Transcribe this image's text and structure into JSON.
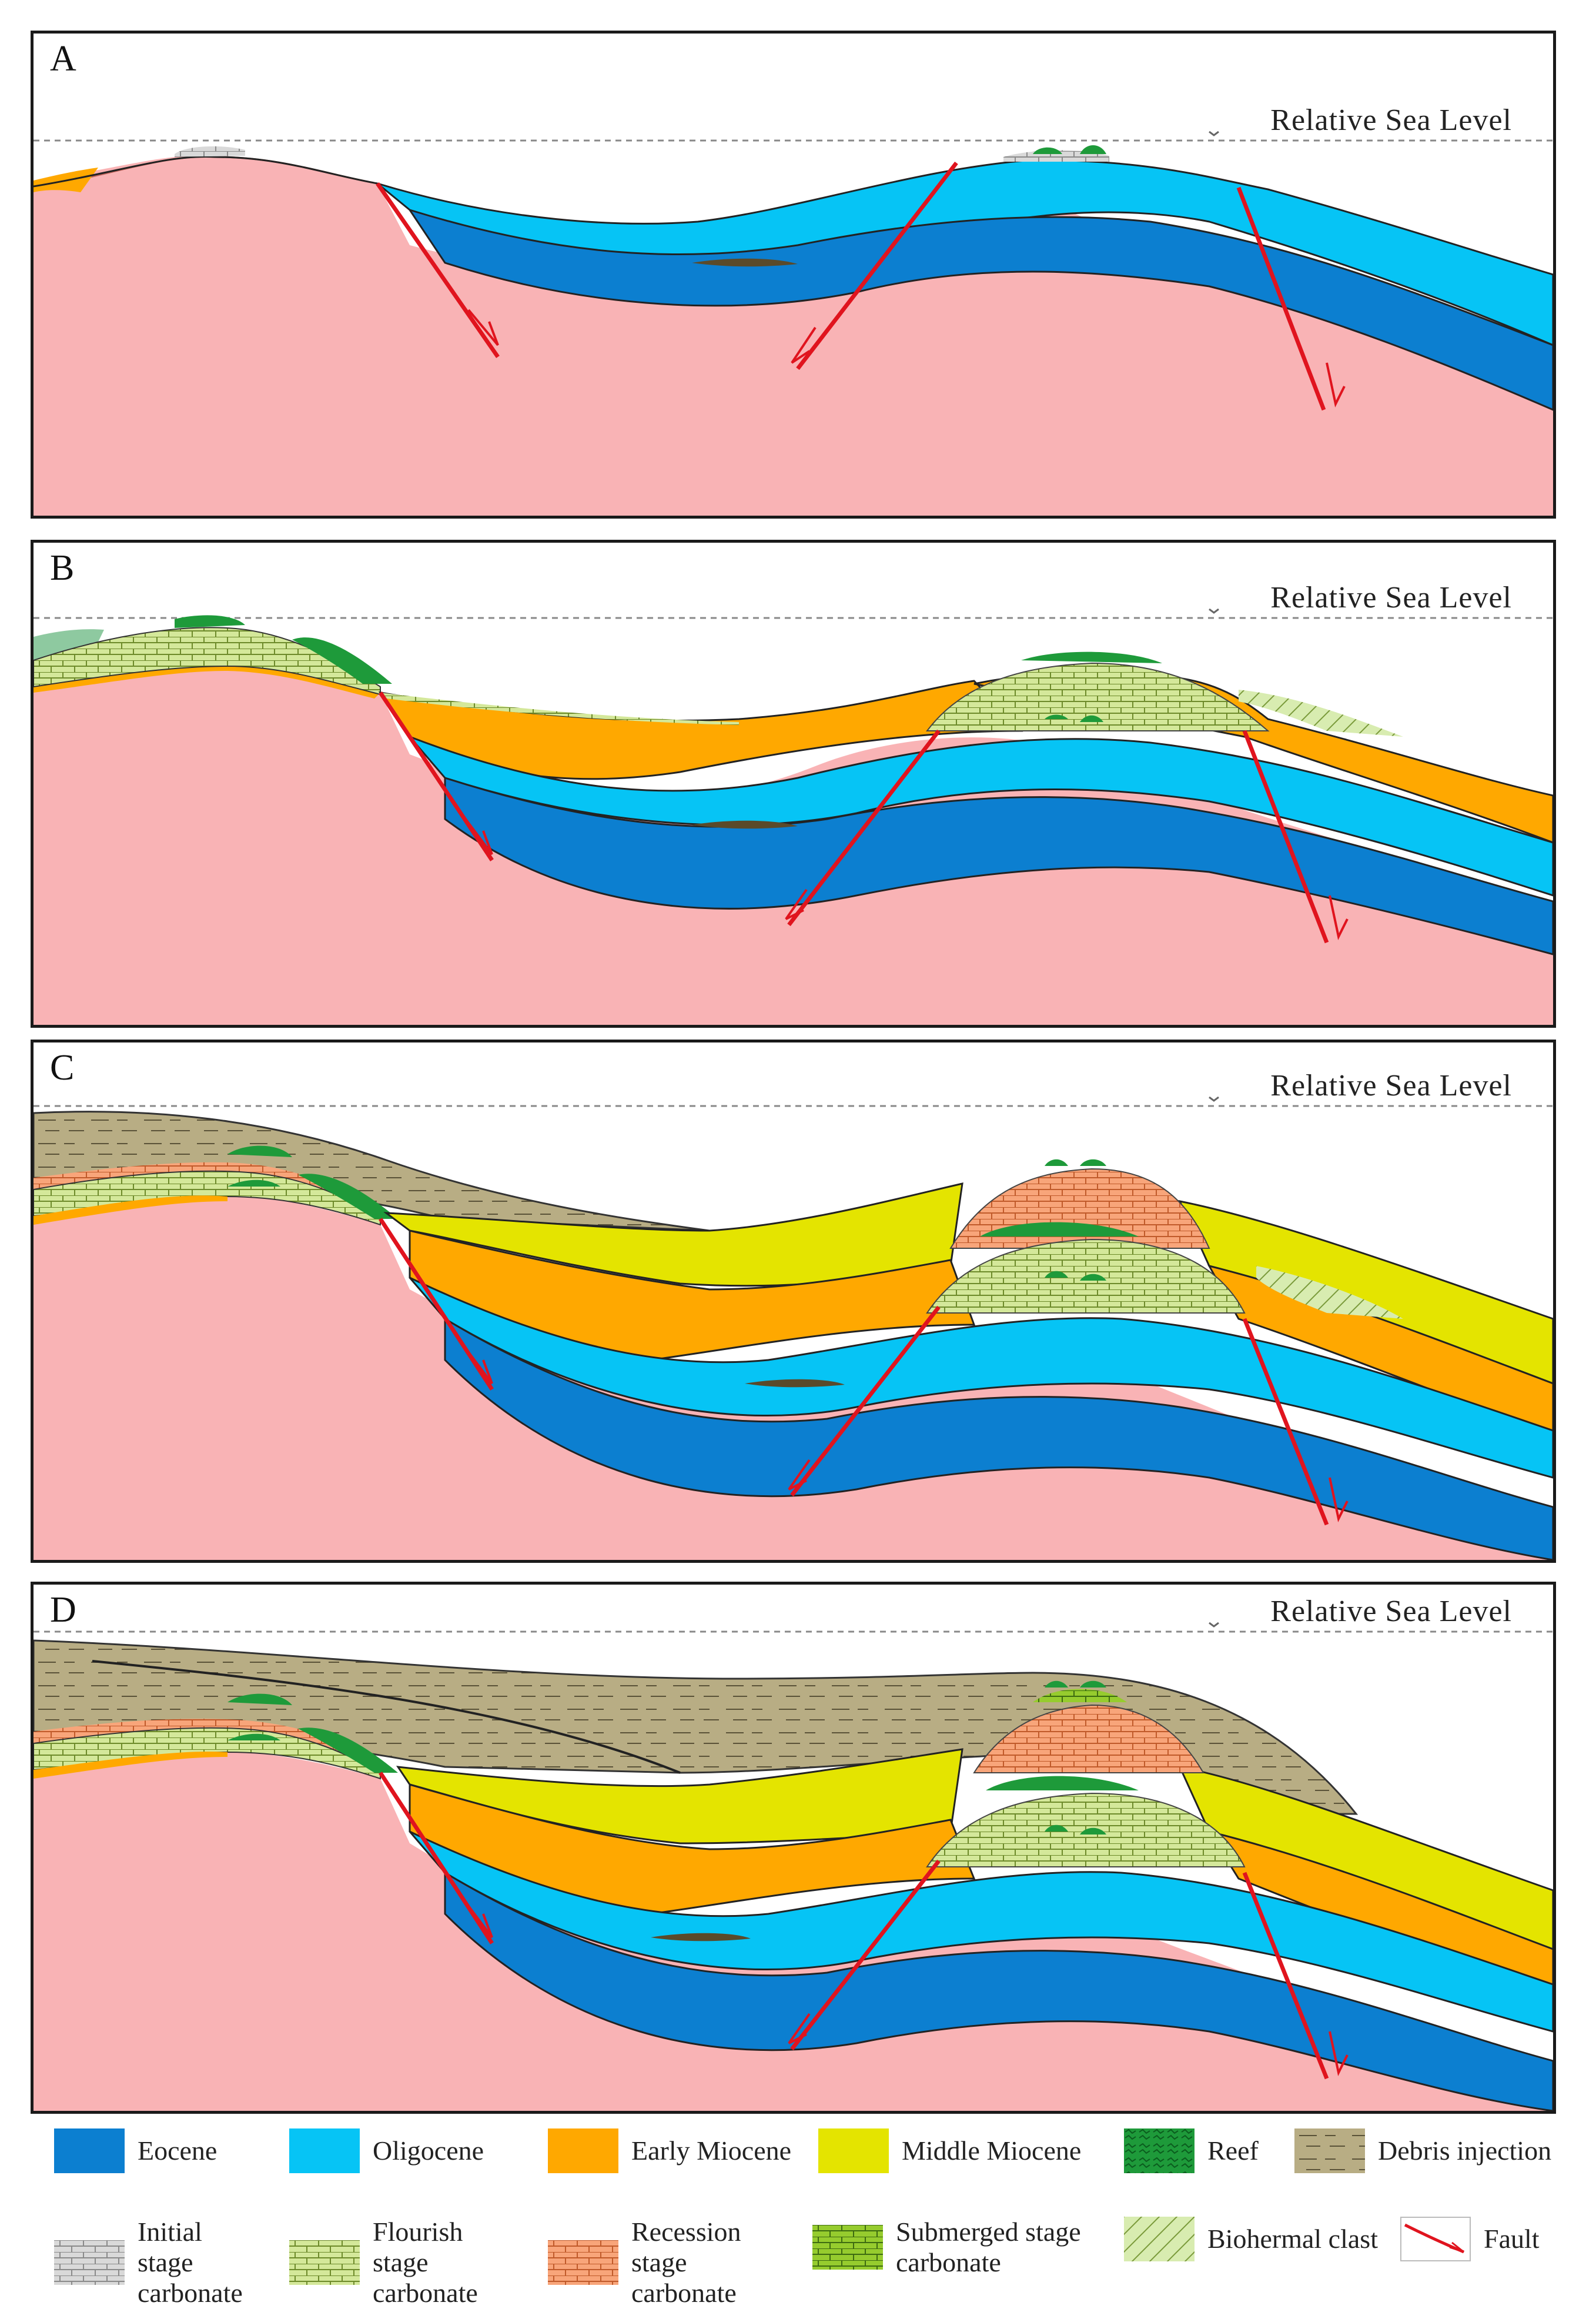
{
  "panels": [
    {
      "letter": "A",
      "sea_level_label": "Relative Sea Level"
    },
    {
      "letter": "B",
      "sea_level_label": "Relative Sea Level"
    },
    {
      "letter": "C",
      "sea_level_label": "Relative Sea Level"
    },
    {
      "letter": "D",
      "sea_level_label": "Relative Sea Level"
    }
  ],
  "legend": {
    "eocene": "Eocene",
    "oligocene": "Oligocene",
    "early_miocene": "Early Miocene",
    "middle_miocene": "Middle Miocene",
    "reef": "Reef",
    "debris_injection": "Debris injection",
    "initial_stage": {
      "w1": "Initial",
      "w2": "stage",
      "l2": "carbonate"
    },
    "flourish_stage": {
      "w1": "Flourish",
      "w2": "stage",
      "l2": "carbonate"
    },
    "recession_stage": {
      "w1": "Recession",
      "w2": "stage",
      "l2": "carbonate"
    },
    "submerged_stage": {
      "w1": "Submerged stage",
      "l2": "carbonate"
    },
    "biohermal_clast": "Biohermal clast",
    "fault": "Fault"
  },
  "colors": {
    "basement": "#f9b3b5",
    "eocene": "#0c7fd0",
    "oligocene": "#06c4f5",
    "early_miocene": "#ffa800",
    "middle_miocene": "#e4e400",
    "debris": "#b8ad84",
    "initial_carbonate": "#d7d7d7",
    "flourish_carbonate": "#d4e89a",
    "recession_carbonate": "#f8a57a",
    "submerged_carbonate": "#96cc2e",
    "reef": "#1e9a3a",
    "fault": "#e0141e"
  }
}
